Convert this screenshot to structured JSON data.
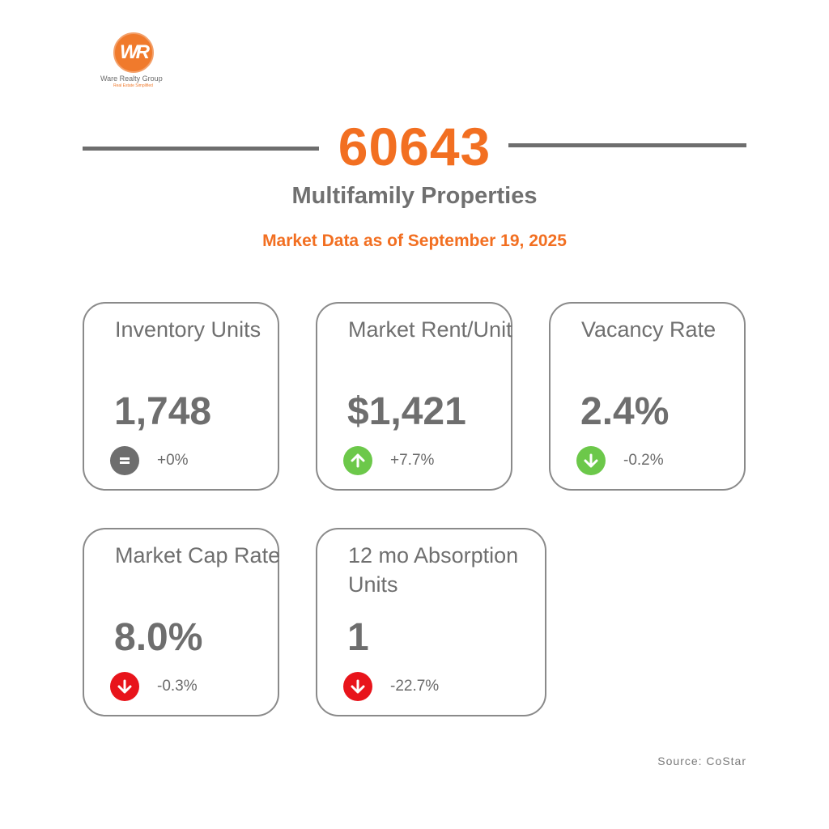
{
  "brand": {
    "logo_letters": "WR",
    "name": "Ware Realty Group",
    "tagline": "Real Estate Simplified",
    "accent_color": "#f26f21"
  },
  "header": {
    "zip": "60643",
    "title": "Multifamily Properties",
    "subtitle": "Market Data as of September 19, 2025"
  },
  "cards": [
    {
      "label": "Inventory Units",
      "value": "1,748",
      "change": "+0%",
      "trend": "neutral",
      "icon": "equals-icon",
      "icon_color": "#6e6e6e"
    },
    {
      "label": "Market Rent/Unit",
      "value": "$1,421",
      "change": "+7.7%",
      "trend": "up",
      "icon": "arrow-up-icon",
      "icon_color": "#6cc84a"
    },
    {
      "label": "Vacancy Rate",
      "value": "2.4%",
      "change": "-0.2%",
      "trend": "down-good",
      "icon": "arrow-down-icon",
      "icon_color": "#6cc84a"
    },
    {
      "label": "Market Cap Rate",
      "value": "8.0%",
      "change": "-0.3%",
      "trend": "down-bad",
      "icon": "arrow-down-icon",
      "icon_color": "#e8141b"
    },
    {
      "label": "12 mo Absorption Units",
      "value": "1",
      "change": "-22.7%",
      "trend": "down-bad",
      "icon": "arrow-down-icon",
      "icon_color": "#e8141b"
    }
  ],
  "footer": {
    "source": "Source: CoStar"
  }
}
